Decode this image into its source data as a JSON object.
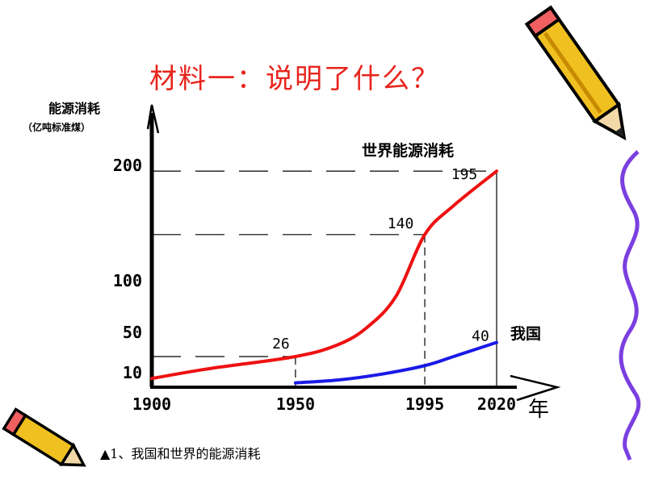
{
  "slide": {
    "title": "材料一：说明了什么？",
    "caption": "▲1、我国和世界的能源消耗"
  },
  "colors": {
    "title": "#e8241c",
    "world_line": "#ee1111",
    "china_line": "#1a1ae6",
    "axis": "#000000",
    "decor_wave": "#7b3fe0",
    "pencil_body": "#f0c020",
    "pencil_outline": "#000000"
  },
  "icons": [
    "pencil-icon",
    "pencil-icon",
    "wave-decoration"
  ],
  "chart_data": {
    "type": "line",
    "ylabel": "能源消耗",
    "ylabel_unit": "（亿吨标准煤）",
    "xunit": "年",
    "x_ticks": [
      "1900",
      "1950",
      "1995",
      "2020"
    ],
    "y_ticks": [
      "10",
      "50",
      "100",
      "200"
    ],
    "series": [
      {
        "name": "世界能源消耗",
        "color": "#ee1111",
        "points": [
          [
            1900,
            6
          ],
          [
            1920,
            14
          ],
          [
            1950,
            26
          ],
          [
            1965,
            38
          ],
          [
            1975,
            55
          ],
          [
            1985,
            85
          ],
          [
            1995,
            140
          ],
          [
            2005,
            165
          ],
          [
            2020,
            195
          ]
        ]
      },
      {
        "name": "我国",
        "color": "#1a1ae6",
        "points": [
          [
            1950,
            3
          ],
          [
            1965,
            5
          ],
          [
            1980,
            9
          ],
          [
            1995,
            17
          ],
          [
            2005,
            26
          ],
          [
            2020,
            40
          ]
        ]
      }
    ],
    "annotations": [
      {
        "text": "26",
        "x": 1950,
        "y": 26
      },
      {
        "text": "140",
        "x": 1995,
        "y": 140
      },
      {
        "text": "195",
        "x": 2020,
        "y": 195
      },
      {
        "text": "40",
        "x": 2020,
        "y": 40
      }
    ],
    "grid": false
  }
}
